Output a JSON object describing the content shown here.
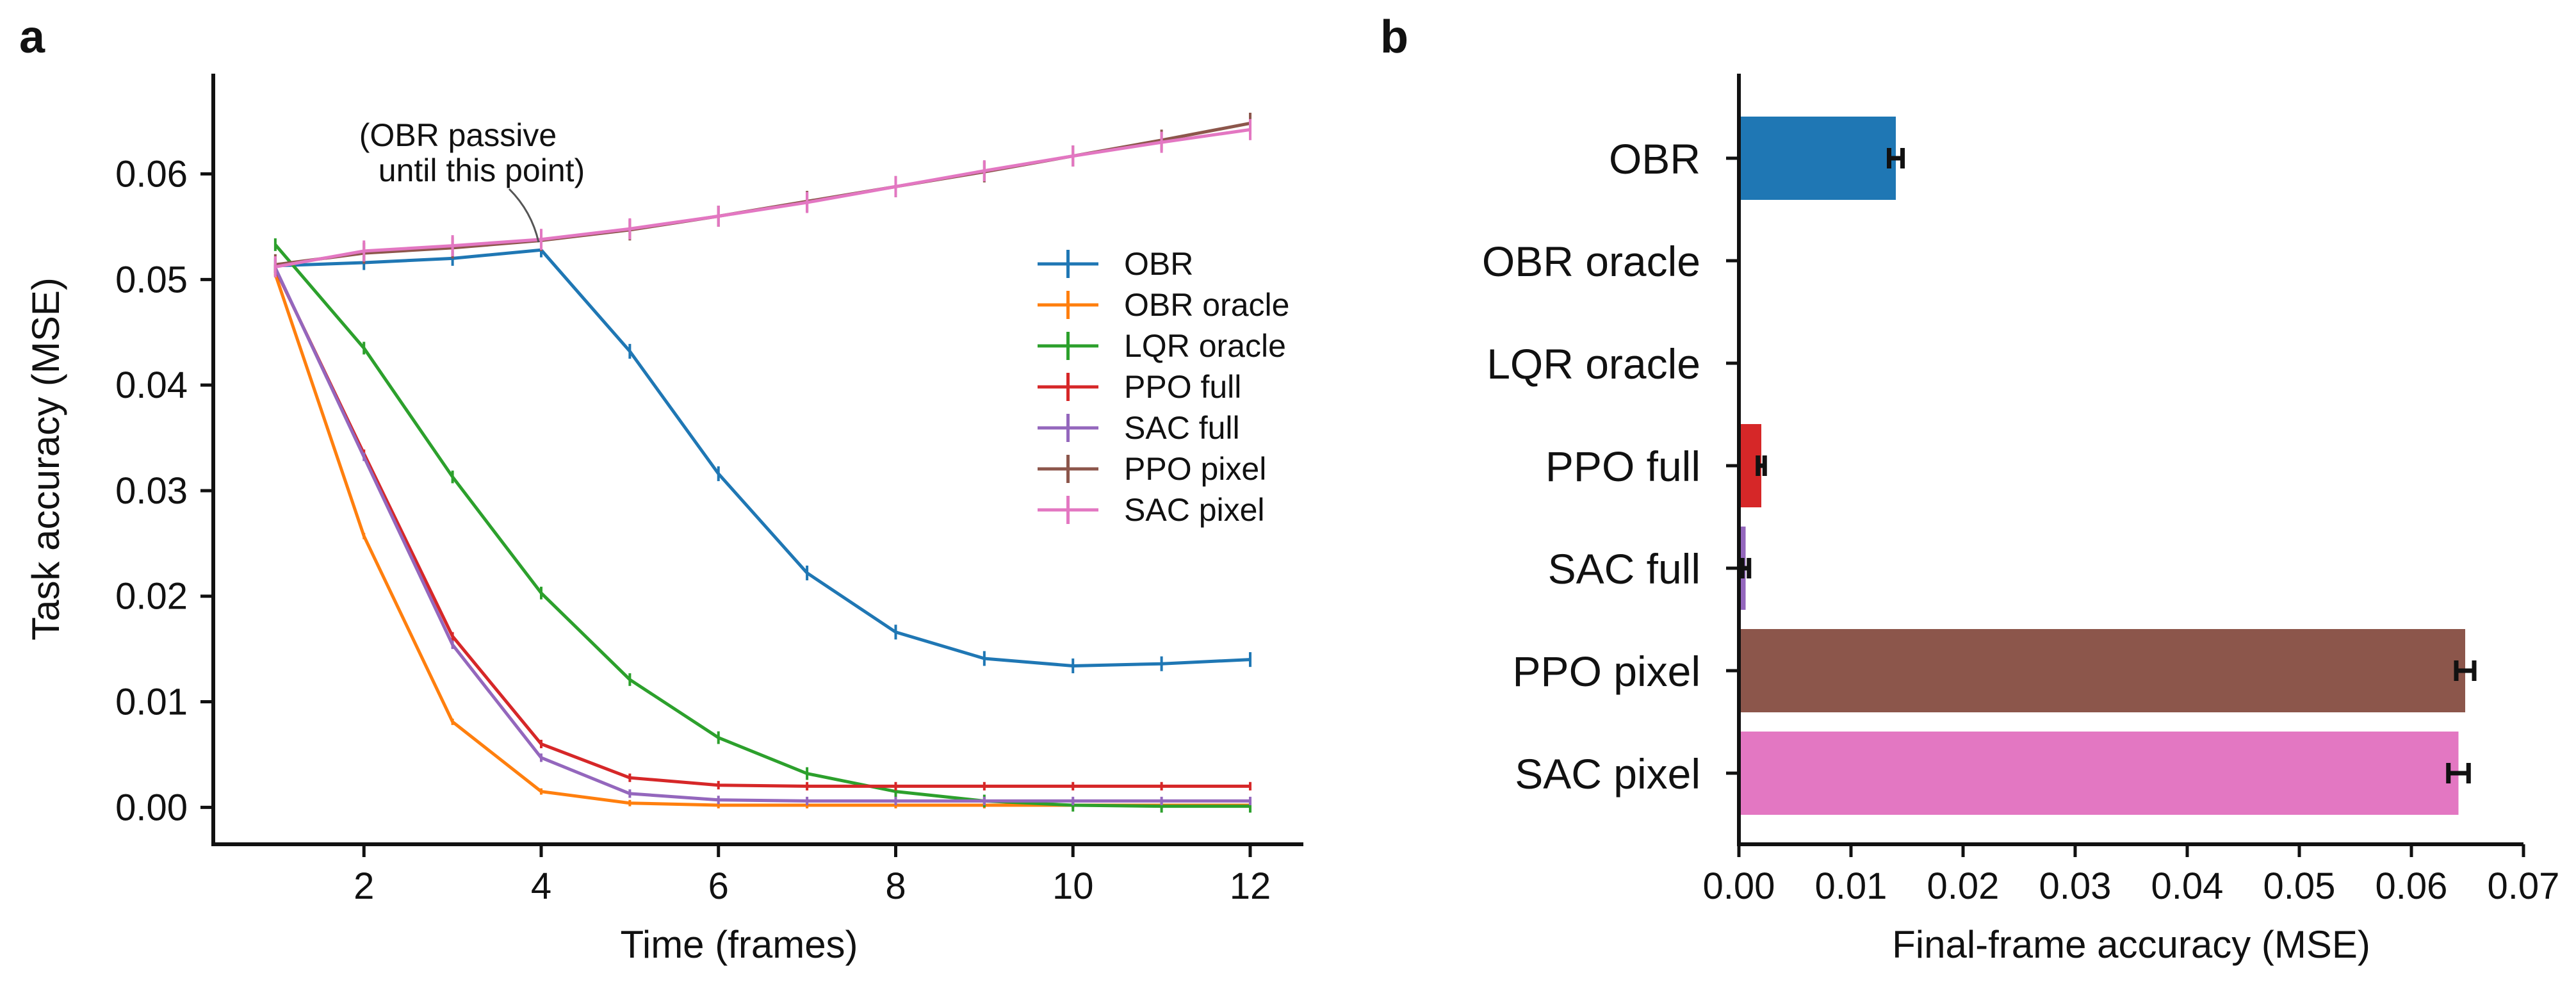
{
  "colors": {
    "OBR": "#1f77b4",
    "OBR oracle": "#ff7f0e",
    "LQR oracle": "#2ca02c",
    "PPO full": "#d62728",
    "SAC full": "#9467bd",
    "PPO pixel": "#8c564b",
    "SAC pixel": "#e377c2"
  },
  "panels": {
    "a": "a",
    "b": "b"
  },
  "chart_data": [
    {
      "type": "line",
      "panel": "a",
      "xlabel": "Time (frames)",
      "ylabel": "Task accuracy (MSE)",
      "xlim": [
        0.3,
        12.6
      ],
      "ylim": [
        -0.0035,
        0.0695
      ],
      "xticks": [
        2,
        4,
        6,
        8,
        10,
        12
      ],
      "xtick_labels": [
        "2",
        "4",
        "6",
        "8",
        "10",
        "12"
      ],
      "yticks": [
        0.0,
        0.01,
        0.02,
        0.03,
        0.04,
        0.05,
        0.06
      ],
      "ytick_labels": [
        "0.00",
        "0.01",
        "0.02",
        "0.03",
        "0.04",
        "0.05",
        "0.06"
      ],
      "legend_position": "center-right",
      "annotation": {
        "lines": [
          "(OBR passive",
          "until this point)"
        ],
        "x": 4,
        "y": 0.0528
      },
      "x": [
        1,
        2,
        3,
        4,
        5,
        6,
        7,
        8,
        9,
        10,
        11,
        12
      ],
      "series": [
        {
          "name": "OBR",
          "values": [
            0.0513,
            0.0516,
            0.052,
            0.0528,
            0.0432,
            0.0316,
            0.0222,
            0.0166,
            0.0141,
            0.0134,
            0.0136,
            0.014
          ],
          "err": 0.0007
        },
        {
          "name": "OBR oracle",
          "values": [
            0.0505,
            0.0257,
            0.0081,
            0.0015,
            0.0004,
            0.0002,
            0.0002,
            0.0002,
            0.0002,
            0.0002,
            0.0002,
            0.0002
          ],
          "err": 0.0003
        },
        {
          "name": "LQR oracle",
          "values": [
            0.0533,
            0.0435,
            0.0313,
            0.0203,
            0.0121,
            0.0066,
            0.0032,
            0.0015,
            0.0006,
            0.0002,
            0.0001,
            0.0001
          ],
          "err": 0.0006
        },
        {
          "name": "PPO full",
          "values": [
            0.051,
            0.0335,
            0.0162,
            0.006,
            0.0028,
            0.0021,
            0.002,
            0.002,
            0.002,
            0.002,
            0.002,
            0.002
          ],
          "err": 0.0004
        },
        {
          "name": "SAC full",
          "values": [
            0.0511,
            0.0332,
            0.0154,
            0.0047,
            0.0013,
            0.0007,
            0.0006,
            0.0006,
            0.0006,
            0.0006,
            0.0006,
            0.0006
          ],
          "err": 0.0004
        },
        {
          "name": "PPO pixel",
          "values": [
            0.0514,
            0.0525,
            0.053,
            0.0537,
            0.0547,
            0.056,
            0.0574,
            0.0588,
            0.0602,
            0.0617,
            0.0632,
            0.0648
          ],
          "err": 0.001
        },
        {
          "name": "SAC pixel",
          "values": [
            0.0512,
            0.0527,
            0.0532,
            0.0538,
            0.0548,
            0.056,
            0.0573,
            0.0588,
            0.0603,
            0.0617,
            0.063,
            0.0642
          ],
          "err": 0.001
        }
      ]
    },
    {
      "type": "bar",
      "orientation": "horizontal",
      "panel": "b",
      "xlabel": "Final-frame accuracy (MSE)",
      "xlim": [
        0.0,
        0.07
      ],
      "xticks": [
        0.0,
        0.01,
        0.02,
        0.03,
        0.04,
        0.05,
        0.06,
        0.07
      ],
      "xtick_labels": [
        "0.00",
        "0.01",
        "0.02",
        "0.03",
        "0.04",
        "0.05",
        "0.06",
        "0.07"
      ],
      "categories": [
        "OBR",
        "OBR oracle",
        "LQR oracle",
        "PPO full",
        "SAC full",
        "PPO pixel",
        "SAC pixel"
      ],
      "values": [
        0.014,
        0.0,
        0.0,
        0.002,
        0.0006,
        0.0648,
        0.0642
      ],
      "errors": [
        0.0006,
        0.0,
        0.0,
        0.0003,
        0.0003,
        0.0008,
        0.0009
      ]
    }
  ]
}
